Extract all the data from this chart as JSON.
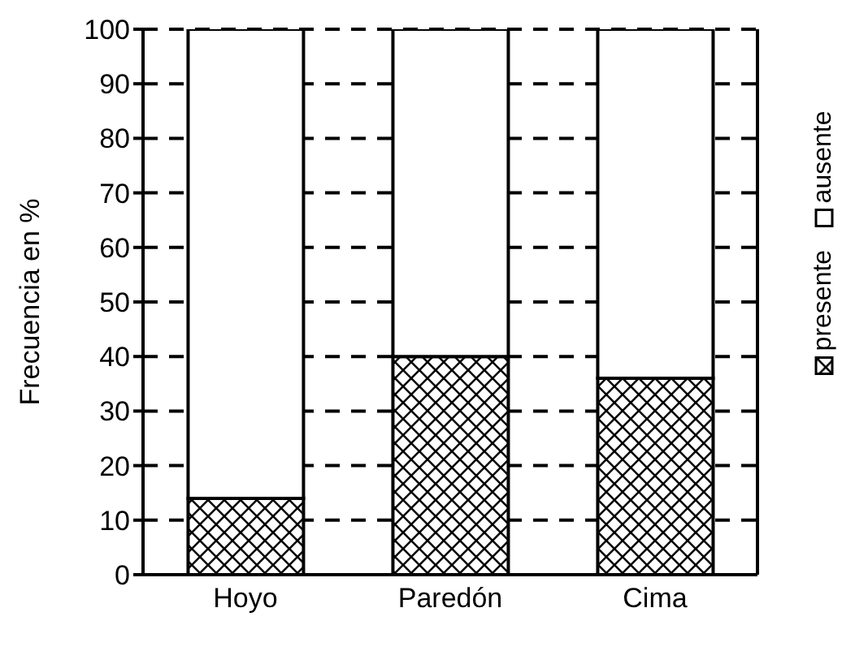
{
  "chart_data": {
    "type": "bar",
    "stacked": true,
    "ylabel": "Frecuencia en %",
    "categories": [
      "Hoyo",
      "Paredón",
      "Cima"
    ],
    "series": [
      {
        "name": "presente",
        "color": "#000000",
        "values": [
          14,
          40,
          36
        ]
      },
      {
        "name": "ausente",
        "color": "#ffffff",
        "values": [
          86,
          60,
          64
        ]
      }
    ],
    "ylim": [
      0,
      100
    ],
    "yticks": [
      0,
      10,
      20,
      30,
      40,
      50,
      60,
      70,
      80,
      90,
      100
    ],
    "grid": "y",
    "legend": "right"
  }
}
